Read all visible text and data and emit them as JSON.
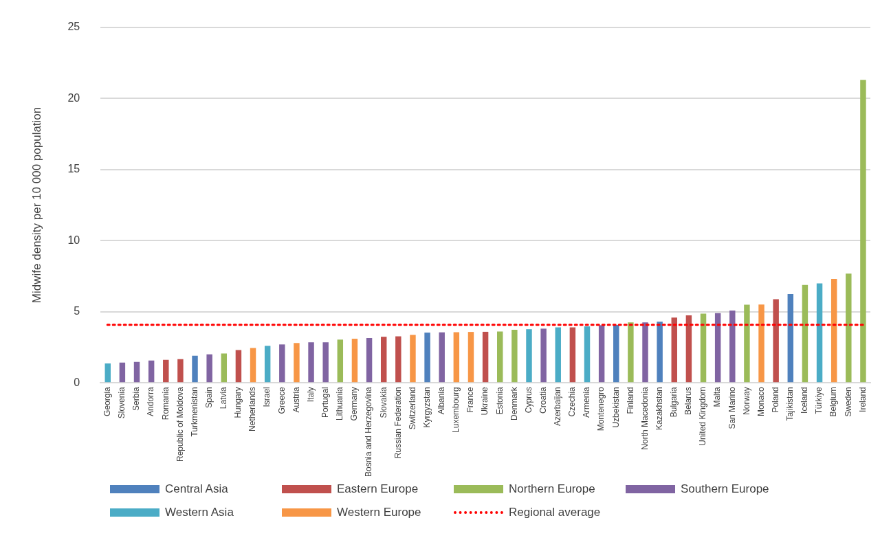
{
  "chart_data": {
    "type": "bar",
    "ylabel": "Midwife density per 10 000 population",
    "categories": [
      "Georgia",
      "Slovenia",
      "Serbia",
      "Andorra",
      "Romania",
      "Republic of Moldova",
      "Turkmenistan",
      "Spain",
      "Latvia",
      "Hungary",
      "Netherlands",
      "Israel",
      "Greece",
      "Austria",
      "Italy",
      "Portugal",
      "Lithuania",
      "Germany",
      "Bosnia and Herzegovina",
      "Slovakia",
      "Russian Federation",
      "Switzerland",
      "Kyrgyzstan",
      "Albania",
      "Luxembourg",
      "France",
      "Ukraine",
      "Estonia",
      "Denmark",
      "Cyprus",
      "Croatia",
      "Azerbaijan",
      "Czechia",
      "Armenia",
      "Montenegro",
      "Uzbekistan",
      "Finland",
      "North Macedonia",
      "Kazakhstan",
      "Bulgaria",
      "Belarus",
      "United Kingdom",
      "Malta",
      "San Marino",
      "Norway",
      "Monaco",
      "Poland",
      "Tajikistan",
      "Iceland",
      "Türkiye",
      "Belgium",
      "Sweden",
      "Ireland"
    ],
    "series": [
      {
        "name": "Central Asia",
        "color": "#4f81bd",
        "values": [
          null,
          null,
          null,
          null,
          null,
          null,
          1.91,
          null,
          null,
          null,
          null,
          null,
          null,
          null,
          null,
          null,
          null,
          null,
          null,
          null,
          null,
          null,
          3.53,
          null,
          null,
          null,
          null,
          null,
          null,
          null,
          null,
          null,
          null,
          null,
          null,
          4.07,
          null,
          null,
          4.3,
          null,
          null,
          null,
          null,
          null,
          null,
          null,
          null,
          6.24,
          null,
          null,
          null,
          null,
          null
        ]
      },
      {
        "name": "Eastern Europe",
        "color": "#c0504d",
        "values": [
          null,
          null,
          null,
          null,
          1.62,
          1.67,
          null,
          null,
          null,
          2.3,
          null,
          null,
          null,
          null,
          null,
          null,
          null,
          null,
          null,
          3.24,
          3.27,
          null,
          null,
          null,
          null,
          null,
          3.59,
          null,
          null,
          null,
          null,
          null,
          3.9,
          null,
          null,
          null,
          null,
          null,
          null,
          4.59,
          4.75,
          null,
          null,
          null,
          null,
          null,
          5.88,
          null,
          null,
          null,
          null,
          null,
          null
        ]
      },
      {
        "name": "Northern Europe",
        "color": "#9bbb59",
        "values": [
          null,
          null,
          null,
          null,
          null,
          null,
          null,
          null,
          2.06,
          null,
          null,
          null,
          null,
          null,
          null,
          null,
          3.04,
          null,
          null,
          null,
          null,
          null,
          null,
          null,
          null,
          null,
          null,
          3.61,
          3.73,
          null,
          null,
          null,
          null,
          null,
          null,
          null,
          4.25,
          null,
          null,
          null,
          null,
          4.87,
          null,
          null,
          5.49,
          null,
          null,
          null,
          6.88,
          null,
          null,
          7.68,
          21.3
        ]
      },
      {
        "name": "Southern Europe",
        "color": "#8064a2",
        "values": [
          null,
          1.42,
          1.47,
          1.57,
          null,
          null,
          null,
          2.0,
          null,
          null,
          null,
          null,
          2.7,
          null,
          2.85,
          2.85,
          null,
          null,
          3.15,
          null,
          null,
          null,
          null,
          3.55,
          null,
          null,
          null,
          null,
          null,
          null,
          3.81,
          null,
          null,
          null,
          4.05,
          null,
          null,
          4.25,
          null,
          null,
          null,
          null,
          4.9,
          5.08,
          null,
          null,
          null,
          null,
          null,
          null,
          null,
          null,
          null
        ]
      },
      {
        "name": "Western Asia",
        "color": "#4bacc6",
        "values": [
          1.37,
          null,
          null,
          null,
          null,
          null,
          null,
          null,
          null,
          null,
          null,
          2.6,
          null,
          null,
          null,
          null,
          null,
          null,
          null,
          null,
          null,
          null,
          null,
          null,
          null,
          null,
          null,
          null,
          null,
          3.77,
          null,
          3.9,
          null,
          3.97,
          null,
          null,
          null,
          null,
          null,
          null,
          null,
          null,
          null,
          null,
          null,
          null,
          null,
          null,
          null,
          6.99,
          null,
          null,
          null
        ]
      },
      {
        "name": "Western Europe",
        "color": "#f79646",
        "values": [
          null,
          null,
          null,
          null,
          null,
          null,
          null,
          null,
          null,
          null,
          2.45,
          null,
          null,
          2.8,
          null,
          null,
          null,
          3.1,
          null,
          null,
          null,
          3.37,
          null,
          null,
          3.56,
          3.58,
          null,
          null,
          null,
          null,
          null,
          null,
          null,
          null,
          null,
          null,
          null,
          null,
          null,
          null,
          null,
          null,
          null,
          null,
          null,
          5.51,
          null,
          null,
          null,
          null,
          7.3,
          null,
          null
        ]
      }
    ],
    "ref_lines": [
      {
        "axis": "y",
        "value": 4.08,
        "label": "Regional average",
        "color": "#ff0000",
        "line_style": "dotted"
      }
    ],
    "ylim": [
      0,
      25
    ],
    "yticks": [
      0,
      5,
      10,
      15,
      20,
      25
    ],
    "grid": "y",
    "legend": "bottom"
  }
}
